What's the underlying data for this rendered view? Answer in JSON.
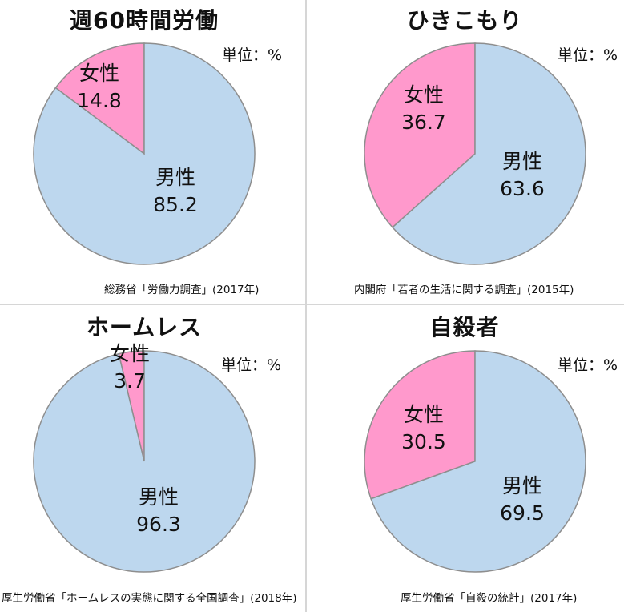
{
  "colors": {
    "male": "#bdd7ee",
    "female": "#ff99cc",
    "stroke": "#8e8e8e"
  },
  "chart_data": [
    {
      "type": "pie",
      "title": "週60時間労働",
      "unit": "単位：%",
      "source": "総務省「労働力調査」(2017年)",
      "slices": [
        {
          "label": "女性",
          "value": 14.8,
          "value_text": "14.8",
          "color": "#ff99cc"
        },
        {
          "label": "男性",
          "value": 85.2,
          "value_text": "85.2",
          "color": "#bdd7ee"
        }
      ]
    },
    {
      "type": "pie",
      "title": "ひきこもり",
      "unit": "単位：%",
      "source": "内閣府「若者の生活に関する調査」(2015年)",
      "slices": [
        {
          "label": "女性",
          "value": 36.7,
          "value_text": "36.7",
          "color": "#ff99cc"
        },
        {
          "label": "男性",
          "value": 63.6,
          "value_text": "63.6",
          "color": "#bdd7ee"
        }
      ]
    },
    {
      "type": "pie",
      "title": "ホームレス",
      "unit": "単位：%",
      "source": "厚生労働省「ホームレスの実態に関する全国調査」(2018年)",
      "slices": [
        {
          "label": "女性",
          "value": 3.7,
          "value_text": "3.7",
          "color": "#ff99cc"
        },
        {
          "label": "男性",
          "value": 96.3,
          "value_text": "96.3",
          "color": "#bdd7ee"
        }
      ]
    },
    {
      "type": "pie",
      "title": "自殺者",
      "unit": "単位：%",
      "source": "厚生労働省「自殺の統計」(2017年)",
      "slices": [
        {
          "label": "女性",
          "value": 30.5,
          "value_text": "30.5",
          "color": "#ff99cc"
        },
        {
          "label": "男性",
          "value": 69.5,
          "value_text": "69.5",
          "color": "#bdd7ee"
        }
      ]
    }
  ]
}
